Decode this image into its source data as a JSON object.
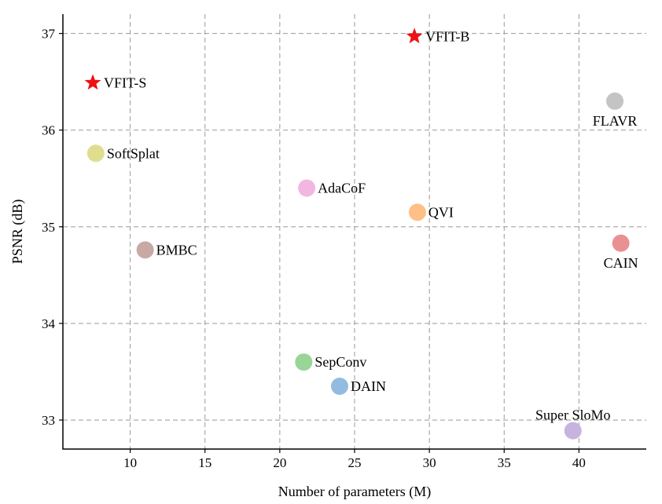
{
  "chart_data": {
    "type": "scatter",
    "xlabel": "Number of parameters (M)",
    "ylabel": "PSNR (dB)",
    "xlim": [
      5.5,
      44.5
    ],
    "ylim": [
      32.7,
      37.2
    ],
    "xticks": [
      10,
      15,
      20,
      25,
      30,
      35,
      40
    ],
    "yticks": [
      33,
      34,
      35,
      36,
      37
    ],
    "grid": true,
    "points": [
      {
        "name": "VFIT-S",
        "x": 7.5,
        "y": 36.49,
        "marker": "star",
        "color": "#ee1111",
        "label_pos": "right"
      },
      {
        "name": "VFIT-B",
        "x": 29.0,
        "y": 36.97,
        "marker": "star",
        "color": "#ee1111",
        "label_pos": "right"
      },
      {
        "name": "FLAVR",
        "x": 42.4,
        "y": 36.3,
        "marker": "circle",
        "color": "#c4c4c4",
        "label_pos": "below"
      },
      {
        "name": "SoftSplat",
        "x": 7.7,
        "y": 35.76,
        "marker": "circle",
        "color": "#dede8e",
        "label_pos": "right"
      },
      {
        "name": "AdaCoF",
        "x": 21.8,
        "y": 35.4,
        "marker": "circle",
        "color": "#f2b7e0",
        "label_pos": "right"
      },
      {
        "name": "QVI",
        "x": 29.2,
        "y": 35.15,
        "marker": "circle",
        "color": "#ffbf86",
        "label_pos": "right"
      },
      {
        "name": "CAIN",
        "x": 42.8,
        "y": 34.83,
        "marker": "circle",
        "color": "#eb9090",
        "label_pos": "below"
      },
      {
        "name": "BMBC",
        "x": 11.0,
        "y": 34.76,
        "marker": "circle",
        "color": "#c9a9a4",
        "label_pos": "right"
      },
      {
        "name": "SepConv",
        "x": 21.6,
        "y": 33.6,
        "marker": "circle",
        "color": "#99d597",
        "label_pos": "right"
      },
      {
        "name": "DAIN",
        "x": 24.0,
        "y": 33.35,
        "marker": "circle",
        "color": "#92bcdf",
        "label_pos": "right"
      },
      {
        "name": "Super SloMo",
        "x": 39.6,
        "y": 32.89,
        "marker": "circle",
        "color": "#c6b3df",
        "label_pos": "above"
      }
    ]
  }
}
